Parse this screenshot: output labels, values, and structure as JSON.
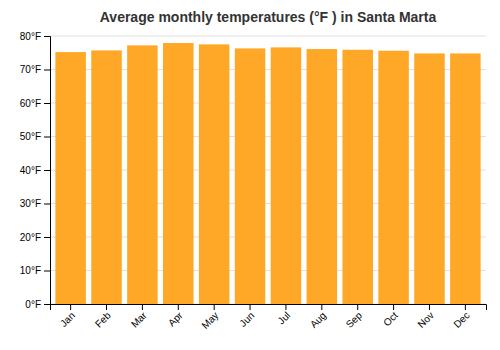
{
  "chart_data": {
    "type": "bar",
    "title": "Average monthly temperatures (°F ) in Santa Marta",
    "categories": [
      "Jan",
      "Feb",
      "Mar",
      "Apr",
      "May",
      "Jun",
      "Jul",
      "Aug",
      "Sep",
      "Oct",
      "Nov",
      "Dec"
    ],
    "values": [
      75.2,
      75.7,
      77.2,
      77.9,
      77.5,
      76.3,
      76.6,
      76.1,
      75.9,
      75.6,
      74.8,
      74.8
    ],
    "color": "#FFA726",
    "ylim": [
      0,
      80
    ],
    "yticks": [
      {
        "value": 0,
        "label": "0°F"
      },
      {
        "value": 10,
        "label": "10°F"
      },
      {
        "value": 20,
        "label": "20°F"
      },
      {
        "value": 30,
        "label": "30°F"
      },
      {
        "value": 40,
        "label": "40°F"
      },
      {
        "value": 50,
        "label": "50°F"
      },
      {
        "value": 60,
        "label": "60°F"
      },
      {
        "value": 70,
        "label": "70°F"
      },
      {
        "value": 80,
        "label": "80°F"
      }
    ],
    "grid": true
  }
}
